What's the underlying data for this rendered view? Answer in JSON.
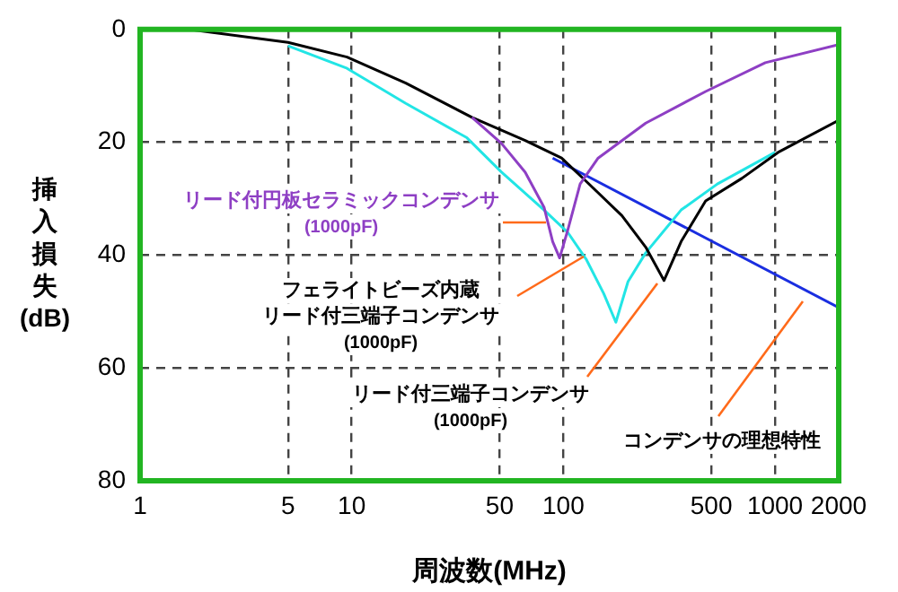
{
  "chart_data": {
    "type": "line",
    "xlabel": "周波数(MHz)",
    "ylabel": "挿入損失(dB)",
    "log": "x",
    "xlim": [
      1,
      2000
    ],
    "xticks": [
      1,
      5,
      10,
      50,
      100,
      500,
      1000,
      2000
    ],
    "ylim": [
      80,
      0
    ],
    "yticks": [
      0,
      20,
      40,
      60,
      80
    ],
    "grid": true,
    "legend": false,
    "marker": "none",
    "line_style": "solid",
    "series": [
      {
        "name": "リード付円板セラミックコンデンサ(1000pF)",
        "color": "#8e3fc4",
        "x": [
          37,
          51,
          66,
          81,
          89,
          96,
          105,
          120,
          146,
          245,
          470,
          900,
          2000
        ],
        "values": [
          15.6,
          20.2,
          25.3,
          31.5,
          37.6,
          40.5,
          35.5,
          27.4,
          22.8,
          16.6,
          11,
          5.9,
          2.7
        ]
      },
      {
        "name": "フェライトビーズ内蔵リード付三端子コンデンサ(1000pF)",
        "color": "#000000",
        "x": [
          1.7,
          5,
          9.5,
          18,
          37,
          66,
          98,
          128,
          189,
          245,
          299,
          360,
          470,
          697,
          1033,
          2000
        ],
        "values": [
          0,
          2.3,
          4.9,
          9.5,
          15.6,
          19.7,
          22.8,
          26.9,
          33,
          38.6,
          44.5,
          37.6,
          30.4,
          26.4,
          21.8,
          16.1
        ]
      },
      {
        "name": "リード付三端子コンデンサ(1000pF)",
        "color": "#22e5e5",
        "x": [
          5,
          9.5,
          18,
          35,
          51,
          81,
          105,
          128,
          155,
          177,
          202,
          245,
          360,
          534,
          1000
        ],
        "values": [
          2.9,
          6.9,
          13.1,
          19.2,
          25.3,
          32,
          36,
          40.7,
          46.8,
          51.9,
          44.7,
          39.6,
          32,
          27.4,
          21.8
        ]
      },
      {
        "name": "コンデンサの理想特性",
        "color": "#1a2ee0",
        "x": [
          89,
          2000
        ],
        "values": [
          22.8,
          49.3
        ]
      }
    ]
  }
}
